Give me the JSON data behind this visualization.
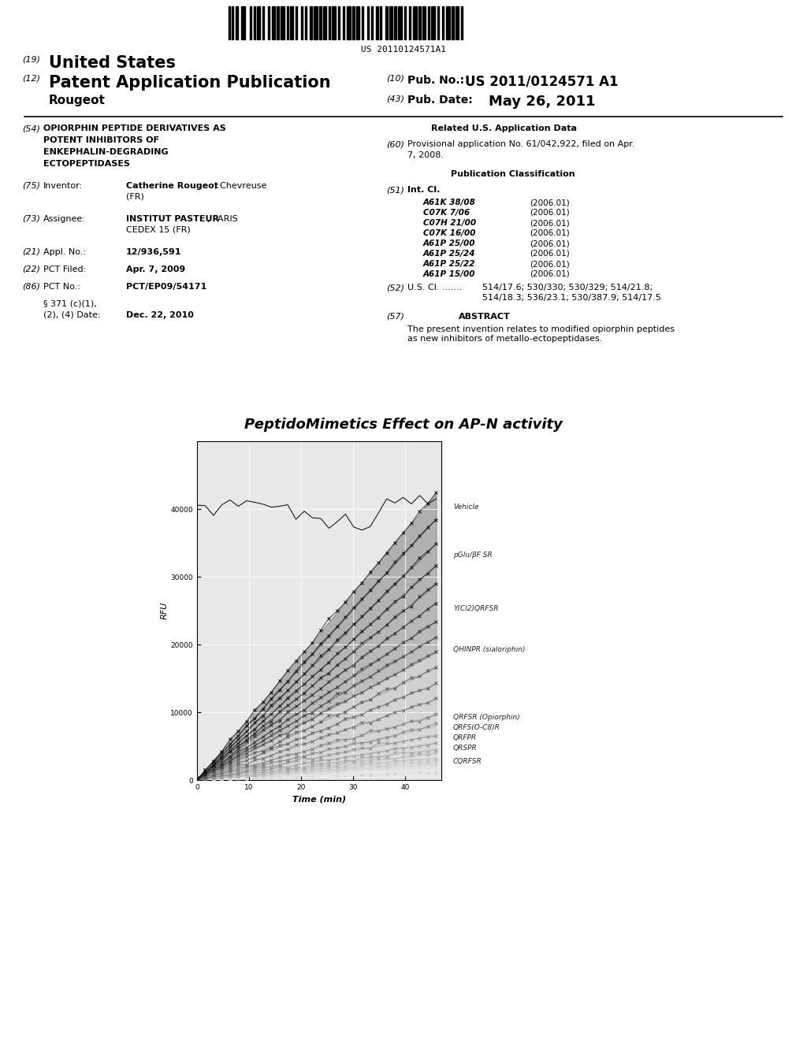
{
  "title": "PeptidoMimetics Effect on AP-N activity",
  "xlabel": "Time (min)",
  "ylabel": "RFU",
  "xlim": [
    0,
    47
  ],
  "ylim": [
    0,
    50000
  ],
  "yticks": [
    0,
    10000,
    20000,
    30000,
    40000
  ],
  "xticks": [
    0,
    10,
    20,
    30,
    40
  ],
  "series_labels": [
    "Vehicle",
    "pGlu/βF SR",
    "Y(Cl2)QRFSR",
    "QHINPR (sialoriphin)",
    "QRFSR (Opiorphin)",
    "QRFS(O-C8)R",
    "QRFPR",
    "QRSPR",
    "CQRFSR"
  ],
  "patent_number": "US 20110124571 A1",
  "pub_date": "May 26, 2011",
  "inventor_bold": "Catherine Rougeot",
  "inventor_rest": ", Chevreuse\n(FR)",
  "assignee_bold": "INSTITUT PASTEUR",
  "assignee_rest": ", PARIS\nCEDEX 15 (FR)",
  "appl_no": "12/936,591",
  "pct_filed": "Apr. 7, 2009",
  "pct_no": "PCT/EP09/54171",
  "section_371_date": "Dec. 22, 2010",
  "int_cl": [
    [
      "A61K 38/08",
      "(2006.01)"
    ],
    [
      "C07K 7/06",
      "(2006.01)"
    ],
    [
      "C07H 21/00",
      "(2006.01)"
    ],
    [
      "C07K 16/00",
      "(2006.01)"
    ],
    [
      "A61P 25/00",
      "(2006.01)"
    ],
    [
      "A61P 25/24",
      "(2006.01)"
    ],
    [
      "A61P 25/22",
      "(2006.01)"
    ],
    [
      "A61P 15/00",
      "(2006.01)"
    ]
  ],
  "us_cl_label": "U.S. Cl. .......",
  "us_cl_value1": "514/17.6; 530/330; 530/329; 514/21.8;",
  "us_cl_value2": "514/18.3; 536/23.1; 530/387.9; 514/17.5",
  "abstract": "The present invention relates to modified opiorphin peptides\nas new inhibitors of metallo-ectopeptidases."
}
